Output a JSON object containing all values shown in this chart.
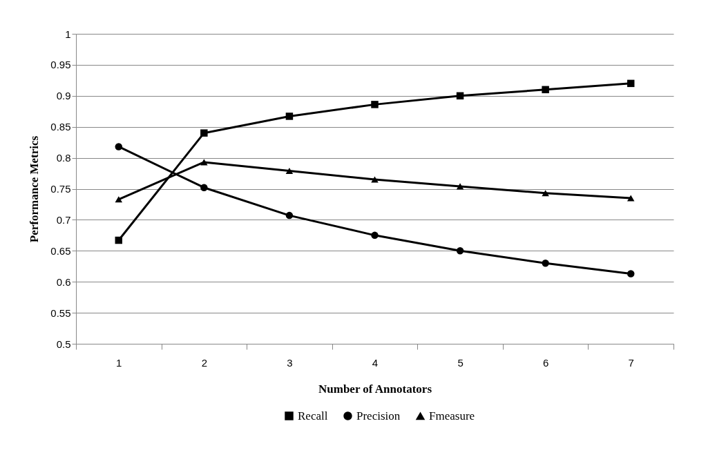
{
  "chart_data": {
    "type": "line",
    "xlabel": "Number of Annotators",
    "ylabel": "Performance Metrics",
    "categories": [
      "1",
      "2",
      "3",
      "4",
      "5",
      "6",
      "7"
    ],
    "series": [
      {
        "name": "Recall",
        "color": "#000000",
        "marker": "square",
        "values": [
          0.667,
          0.84,
          0.867,
          0.886,
          0.9,
          0.91,
          0.92
        ]
      },
      {
        "name": "Precision",
        "color": "#000000",
        "marker": "circle",
        "values": [
          0.818,
          0.752,
          0.707,
          0.675,
          0.65,
          0.63,
          0.613
        ]
      },
      {
        "name": "Fmeasure",
        "color": "#000000",
        "marker": "triangle",
        "values": [
          0.733,
          0.793,
          0.779,
          0.765,
          0.754,
          0.743,
          0.735
        ]
      }
    ],
    "ylim": [
      0.5,
      1
    ],
    "yticks": [
      0.5,
      0.55,
      0.6,
      0.65,
      0.7,
      0.75,
      0.8,
      0.85,
      0.9,
      0.95,
      1
    ],
    "grid": "y",
    "legend": "bottom"
  }
}
